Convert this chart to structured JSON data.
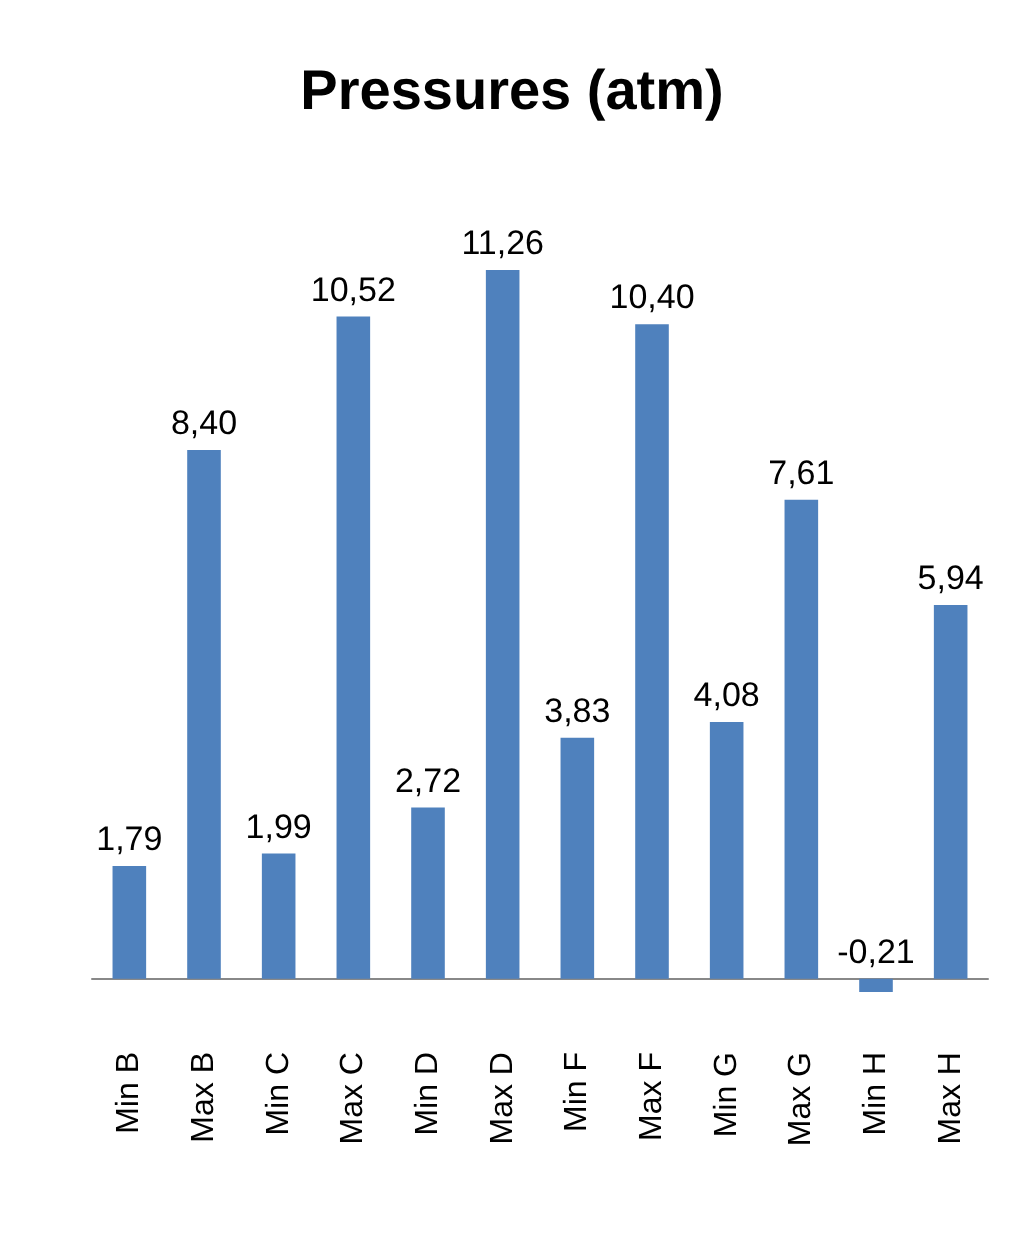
{
  "chart_data": {
    "type": "bar",
    "title": "Pressures (atm)",
    "categories": [
      "Min B",
      "Max B",
      "Min C",
      "Max C",
      "Min D",
      "Max D",
      "Min F",
      "Max F",
      "Min G",
      "Max G",
      "Min H",
      "Max H"
    ],
    "values": [
      1.79,
      8.4,
      1.99,
      10.52,
      2.72,
      11.26,
      3.83,
      10.4,
      4.08,
      7.61,
      -0.21,
      5.94
    ],
    "value_labels": [
      "1,79",
      "8,40",
      "1,99",
      "10,52",
      "2,72",
      "11,26",
      "3,83",
      "10,40",
      "4,08",
      "7,61",
      "-0,21",
      "5,94"
    ],
    "color": "#4f81bd"
  }
}
